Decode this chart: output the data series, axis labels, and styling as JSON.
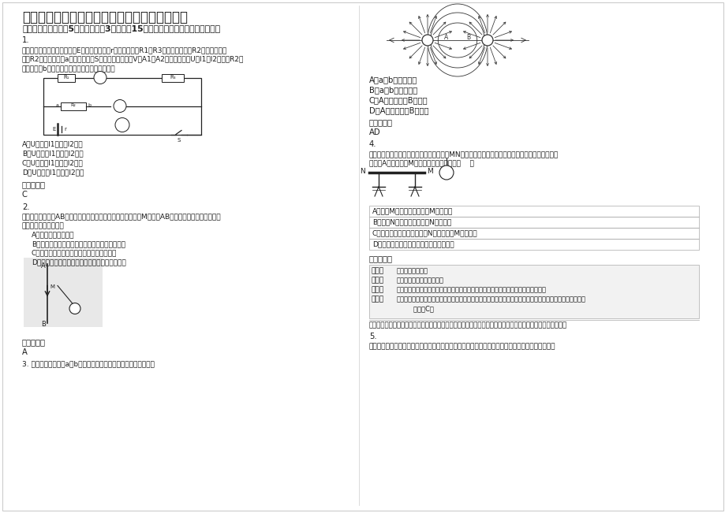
{
  "title": "贵州省遵义市新中中学高二物理联考试卷含解析",
  "section1": "一、选择题：本题共5小题，每小题3分，共计15分，每小题只有一个选项符合题意",
  "q1_num": "1.",
  "q1_lines": [
    "（单选）在如图所示电路中，E为电源电动势，r为电源内阻，R1和R3均为定值电阻，R2为滑动变阻器",
    "。当R2的滑动触点在a端时合上开关S，此时三个电表和V、A1、A2的示数分别为U、I1、I2，现将R2的",
    "滑动触点向b端移动，则三个电表示数的变化情况"
  ],
  "q1_options": [
    "A．U增大，I1增大，I2不变",
    "B．U增大，I1增大，I2减小",
    "C．U减小，I1减小，I2增大",
    "D．U减小，I1减小，I2不变"
  ],
  "q1_answer_label": "参考答案：",
  "q1_answer": "C",
  "q2_num": "2.",
  "q2_lines": [
    "（单选）长直导线AB附近有一带电的小球，由绝缘细绳悬挂在M点，当AB中通以如图所示的恒定电流",
    "时，下列说法正确的是"
  ],
  "q2_options": [
    "A．小球不受磁场作用",
    "B．小球受磁场力作用，方向与导线垂直朝向纸外",
    "C．小球受磁场力作用，方向与导线垂直向左",
    "D．小球受磁场力作用，方向与导线垂直指向纸里"
  ],
  "q2_answer_label": "参考答案：",
  "q2_answer": "A",
  "q3_num": "3. 如图所示为点电荷a、b所形成的电场线分布，以下说法正确的是",
  "q3_options": [
    "A．a、b为异种电荷",
    "B．a、b为同种电荷",
    "C．A点场强大于B点场强",
    "D．A点电势高于B点电势"
  ],
  "q3_answer_label": "参考答案：",
  "q3_answer": "AD",
  "q4_num": "4.",
  "q4_lines": [
    "（单选）如图所示，原来不带电的金属导体MN，在其两端下面都悬挂着金属验电箔；若使带负电的",
    "金属球A靠近导体的M端，可能看到的现象是（    ）"
  ],
  "q4_options": [
    "A．只有M端验电箔张开，且M端带正电",
    "B．只有N端验电箔张开，且N端带正电",
    "C．两端的验电箔都张开，且N端带负电，M端带正电",
    "D．两端的验电箔都张开，且两端都带正电"
  ],
  "q4_answer_label": "参考答案：",
  "q4_notes_label": [
    "考点：",
    "专题：",
    "分析：",
    "解答：",
    ""
  ],
  "q4_notes_text": [
    "静电场中的导体。",
    "电场力与电势的性质专题。",
    "根据静电感应可以判断金属导体的感应的电荷的情况，从而可以判断导体带电的情况。",
    "解：金属导体处在负电荷的电场中，由于静电感应现象，弹头导体的右端感应出正电荷，在导体的左端会出现",
    "        拔选：C。"
  ],
  "q4_comment": "点评：感应带电，这是使物体带电的一种方法，根据异种电荷互相吸引的原理可知，靠近的一端会带异种电荷。",
  "q5_num": "5.",
  "q5_text": "（单选）右图是体育摄影中的成功之作，摄影师用自己的方式表达了运动的美。在摄影师眼中清晰的",
  "bg_color": "#ffffff",
  "text_color": "#1a1a1a",
  "gray_bg": "#f2f2f2",
  "border_color": "#999999",
  "line_color": "#cccccc"
}
